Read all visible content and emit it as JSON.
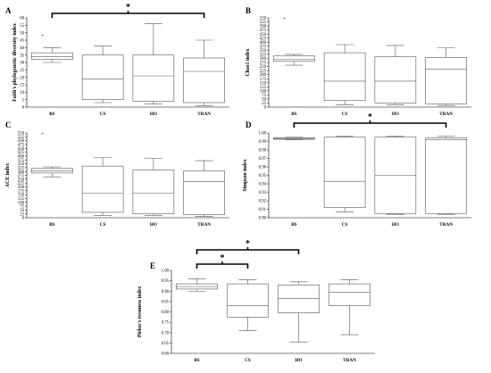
{
  "chart_data": [
    {
      "panel": "A",
      "type": "box",
      "ylabel": "Faith's phylogenetic diversity index",
      "ylim": [
        0,
        60
      ],
      "yticks": [
        0,
        5,
        10,
        15,
        20,
        25,
        30,
        35,
        40,
        45,
        50,
        55,
        60
      ],
      "categories": [
        "BS",
        "CS",
        "HO",
        "TRAN"
      ],
      "boxes": [
        {
          "min": 30,
          "q1": 32,
          "median": 34,
          "q3": 36.5,
          "max": 40,
          "outliers": [
            48
          ]
        },
        {
          "min": 3,
          "q1": 5,
          "median": 19,
          "q3": 35,
          "max": 41,
          "outliers": []
        },
        {
          "min": 2,
          "q1": 4,
          "median": 21,
          "q3": 35,
          "max": 56,
          "outliers": []
        },
        {
          "min": 1,
          "q1": 3,
          "median": 24,
          "q3": 33,
          "max": 45,
          "outliers": []
        }
      ],
      "significance": [
        {
          "from": "BS",
          "to": "TRAN",
          "label": "*"
        }
      ]
    },
    {
      "panel": "B",
      "type": "box",
      "ylabel": "Chao1 index",
      "ylim": [
        0,
        550
      ],
      "yticks": [
        0,
        25,
        50,
        75,
        100,
        125,
        150,
        175,
        200,
        225,
        250,
        275,
        300,
        325,
        350,
        375,
        400,
        425,
        450,
        475,
        500,
        525,
        550
      ],
      "categories": [
        "BS",
        "CS",
        "HO",
        "TRAN"
      ],
      "boxes": [
        {
          "min": 258,
          "q1": 282,
          "median": 295,
          "q3": 315,
          "max": 325,
          "outliers": [
            545
          ]
        },
        {
          "min": 15,
          "q1": 40,
          "median": 160,
          "q3": 335,
          "max": 385,
          "outliers": []
        },
        {
          "min": 15,
          "q1": 25,
          "median": 160,
          "q3": 310,
          "max": 380,
          "outliers": []
        },
        {
          "min": 10,
          "q1": 20,
          "median": 235,
          "q3": 305,
          "max": 365,
          "outliers": []
        }
      ],
      "significance": []
    },
    {
      "panel": "C",
      "type": "box",
      "ylabel": "ACE index",
      "ylim": [
        0,
        550
      ],
      "yticks": [
        0,
        25,
        50,
        75,
        100,
        125,
        150,
        175,
        200,
        225,
        250,
        275,
        300,
        325,
        350,
        375,
        400,
        425,
        450,
        475,
        500,
        525,
        550
      ],
      "categories": [
        "BS",
        "CS",
        "HO",
        "TRAN"
      ],
      "boxes": [
        {
          "min": 265,
          "q1": 290,
          "median": 305,
          "q3": 320,
          "max": 330,
          "outliers": [
            545
          ]
        },
        {
          "min": 15,
          "q1": 35,
          "median": 160,
          "q3": 335,
          "max": 390,
          "outliers": []
        },
        {
          "min": 15,
          "q1": 25,
          "median": 160,
          "q3": 310,
          "max": 385,
          "outliers": []
        },
        {
          "min": 10,
          "q1": 20,
          "median": 235,
          "q3": 305,
          "max": 370,
          "outliers": []
        }
      ],
      "significance": []
    },
    {
      "panel": "D",
      "type": "box",
      "ylabel": "Simpson index",
      "ylim": [
        0.9,
        1.0
      ],
      "yticks": [
        0.9,
        0.91,
        0.92,
        0.93,
        0.94,
        0.95,
        0.96,
        0.97,
        0.98,
        0.99,
        1.0
      ],
      "tick_labels": [
        "0.90",
        "0.91",
        "0.92",
        "0.93",
        "0.94",
        "0.95",
        "0.96",
        "0.97",
        "0.98",
        "0.99",
        "1.00"
      ],
      "categories": [
        "BS",
        "CS",
        "HO",
        "TRAN"
      ],
      "boxes": [
        {
          "min": 0.992,
          "q1": 0.9925,
          "median": 0.9935,
          "q3": 0.9945,
          "max": 0.995,
          "outliers": []
        },
        {
          "min": 0.907,
          "q1": 0.912,
          "median": 0.943,
          "q3": 0.995,
          "max": 0.996,
          "outliers": []
        },
        {
          "min": 0.904,
          "q1": 0.905,
          "median": 0.95,
          "q3": 0.995,
          "max": 0.996,
          "outliers": []
        },
        {
          "min": 0.904,
          "q1": 0.905,
          "median": 0.992,
          "q3": 0.994,
          "max": 0.996,
          "outliers": []
        }
      ],
      "significance": [
        {
          "from": "BS",
          "to": "TRAN",
          "label": "*"
        }
      ]
    },
    {
      "panel": "E",
      "type": "box",
      "ylabel": "Pielou's evenness index",
      "ylim": [
        0.6,
        1.0
      ],
      "yticks": [
        0.6,
        0.65,
        0.7,
        0.75,
        0.8,
        0.85,
        0.9,
        0.95,
        1.0
      ],
      "tick_labels": [
        "0.60",
        "0.65",
        "0.70",
        "0.75",
        "0.80",
        "0.85",
        "0.90",
        "0.95",
        "1.00"
      ],
      "categories": [
        "BS",
        "CS",
        "HO",
        "TRAN"
      ],
      "boxes": [
        {
          "min": 0.9,
          "q1": 0.91,
          "median": 0.922,
          "q3": 0.935,
          "max": 0.96,
          "outliers": []
        },
        {
          "min": 0.71,
          "q1": 0.775,
          "median": 0.83,
          "q3": 0.935,
          "max": 0.955,
          "outliers": []
        },
        {
          "min": 0.655,
          "q1": 0.795,
          "median": 0.865,
          "q3": 0.93,
          "max": 0.945,
          "outliers": []
        },
        {
          "min": 0.69,
          "q1": 0.83,
          "median": 0.895,
          "q3": 0.935,
          "max": 0.955,
          "outliers": []
        }
      ],
      "significance": [
        {
          "from": "BS",
          "to": "CS",
          "label": "*"
        },
        {
          "from": "BS",
          "to": "HO",
          "label": "*"
        }
      ]
    }
  ]
}
